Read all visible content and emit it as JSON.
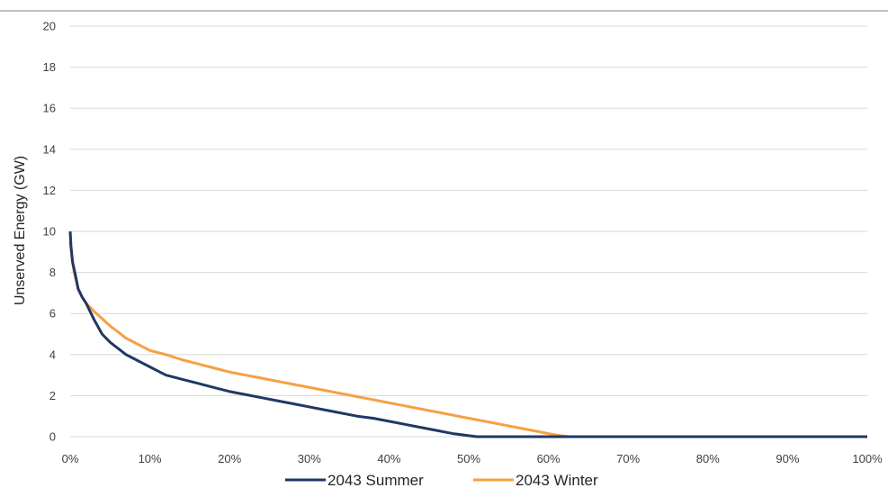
{
  "chart_data": {
    "type": "line",
    "title": "",
    "xlabel": "",
    "ylabel": "Unserved Energy (GW)",
    "xlim": [
      0,
      100
    ],
    "ylim": [
      0,
      20
    ],
    "x_ticks": [
      0,
      10,
      20,
      30,
      40,
      50,
      60,
      70,
      80,
      90,
      100
    ],
    "x_tick_labels": [
      "0%",
      "10%",
      "20%",
      "30%",
      "40%",
      "50%",
      "60%",
      "70%",
      "80%",
      "90%",
      "100%"
    ],
    "y_ticks": [
      0,
      2,
      4,
      6,
      8,
      10,
      12,
      14,
      16,
      18,
      20
    ],
    "y_tick_labels": [
      "0",
      "2",
      "4",
      "6",
      "8",
      "10",
      "12",
      "14",
      "16",
      "18",
      "20"
    ],
    "grid": "horizontal",
    "legend_position": "bottom",
    "series": [
      {
        "name": "2043 Summer",
        "color": "#1f3864",
        "points": [
          [
            0,
            10
          ],
          [
            0.1,
            9.3
          ],
          [
            0.3,
            8.5
          ],
          [
            0.7,
            7.8
          ],
          [
            1,
            7.2
          ],
          [
            1.5,
            6.8
          ],
          [
            2,
            6.5
          ],
          [
            3,
            5.7
          ],
          [
            4,
            5.0
          ],
          [
            5,
            4.6
          ],
          [
            6,
            4.3
          ],
          [
            7,
            4.0
          ],
          [
            8,
            3.8
          ],
          [
            9,
            3.6
          ],
          [
            10,
            3.4
          ],
          [
            11,
            3.2
          ],
          [
            12,
            3.0
          ],
          [
            14,
            2.8
          ],
          [
            16,
            2.6
          ],
          [
            18,
            2.4
          ],
          [
            20,
            2.2
          ],
          [
            22,
            2.05
          ],
          [
            24,
            1.9
          ],
          [
            26,
            1.75
          ],
          [
            28,
            1.6
          ],
          [
            30,
            1.45
          ],
          [
            32,
            1.3
          ],
          [
            34,
            1.15
          ],
          [
            36,
            1.0
          ],
          [
            38,
            0.9
          ],
          [
            40,
            0.75
          ],
          [
            42,
            0.6
          ],
          [
            44,
            0.45
          ],
          [
            46,
            0.3
          ],
          [
            48,
            0.15
          ],
          [
            50,
            0.05
          ],
          [
            51,
            0
          ],
          [
            60,
            0
          ],
          [
            100,
            0
          ]
        ]
      },
      {
        "name": "2043 Winter",
        "color": "#f5a044",
        "points": [
          [
            0,
            9.5
          ],
          [
            0.2,
            8.8
          ],
          [
            0.5,
            8.0
          ],
          [
            1,
            7.2
          ],
          [
            1.5,
            6.8
          ],
          [
            2,
            6.5
          ],
          [
            3,
            6.1
          ],
          [
            4,
            5.75
          ],
          [
            5,
            5.4
          ],
          [
            6,
            5.1
          ],
          [
            7,
            4.8
          ],
          [
            8,
            4.6
          ],
          [
            9,
            4.4
          ],
          [
            10,
            4.2
          ],
          [
            12,
            4.0
          ],
          [
            14,
            3.75
          ],
          [
            16,
            3.55
          ],
          [
            18,
            3.35
          ],
          [
            20,
            3.15
          ],
          [
            22,
            3.0
          ],
          [
            24,
            2.85
          ],
          [
            26,
            2.7
          ],
          [
            28,
            2.55
          ],
          [
            30,
            2.4
          ],
          [
            32,
            2.25
          ],
          [
            34,
            2.1
          ],
          [
            36,
            1.95
          ],
          [
            38,
            1.8
          ],
          [
            40,
            1.65
          ],
          [
            42,
            1.5
          ],
          [
            44,
            1.35
          ],
          [
            46,
            1.2
          ],
          [
            48,
            1.05
          ],
          [
            50,
            0.9
          ],
          [
            52,
            0.75
          ],
          [
            54,
            0.6
          ],
          [
            56,
            0.45
          ],
          [
            58,
            0.3
          ],
          [
            60,
            0.15
          ],
          [
            61.5,
            0.05
          ],
          [
            62.5,
            0
          ],
          [
            100,
            0
          ]
        ]
      }
    ]
  }
}
